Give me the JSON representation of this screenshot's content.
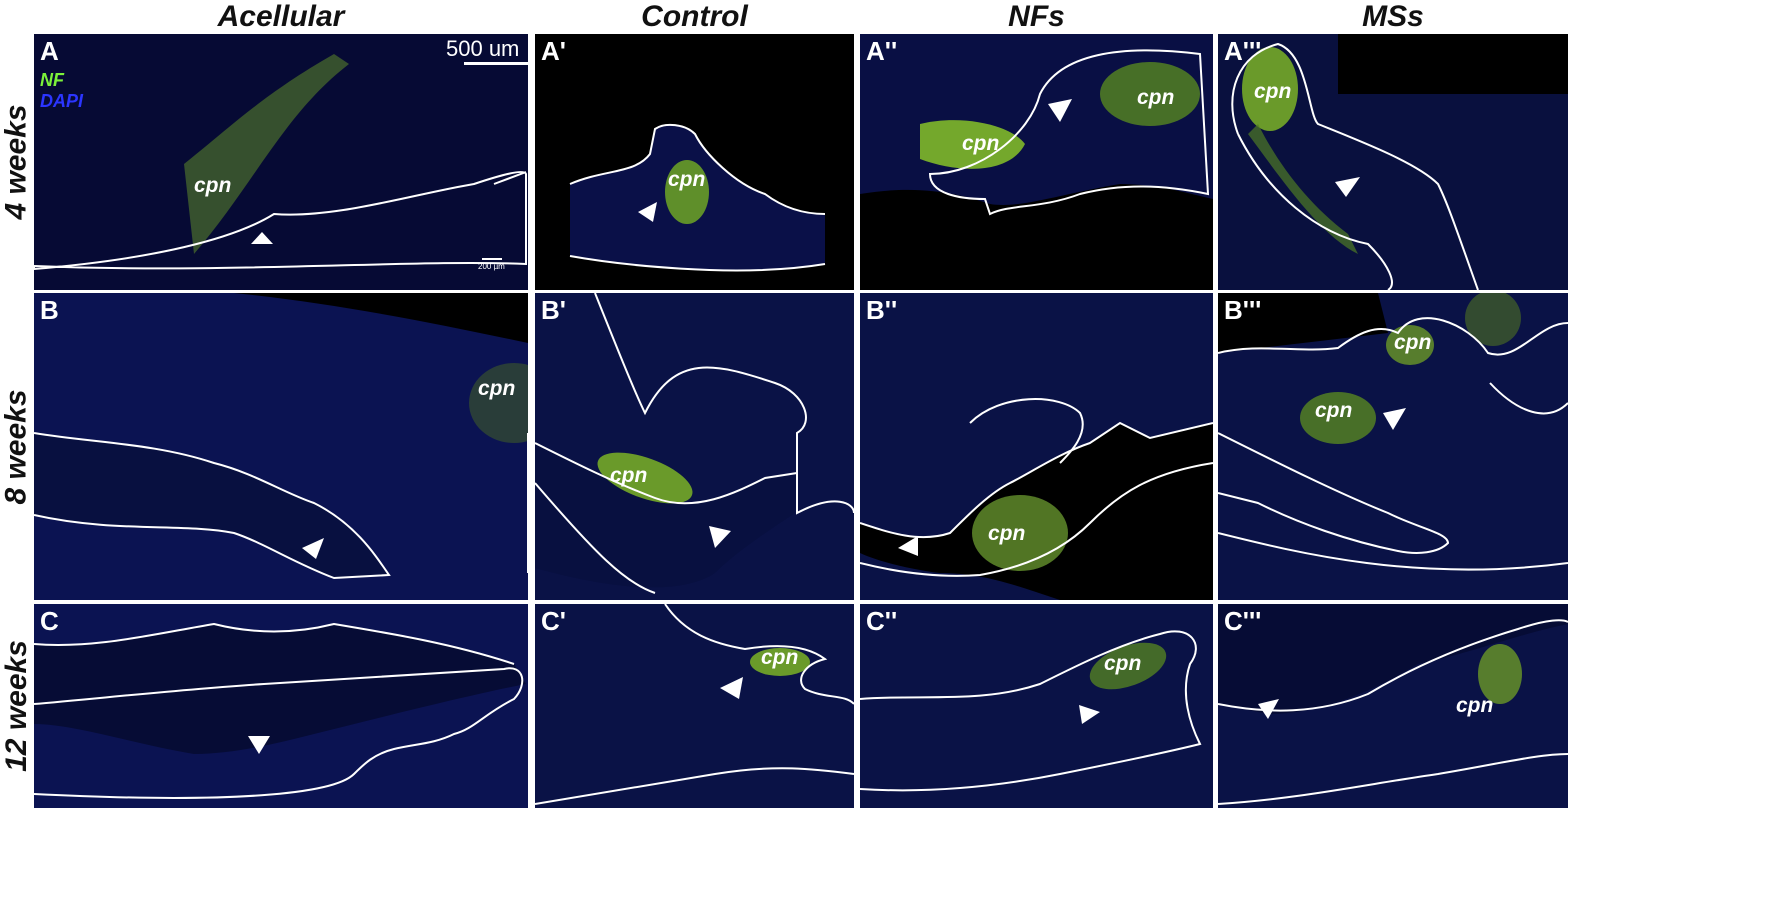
{
  "columns": [
    "Acellular",
    "Control",
    "NFs",
    "MSs"
  ],
  "rows": [
    "4 weeks",
    "8 weeks",
    "12 weeks"
  ],
  "legend": {
    "nf": "NF",
    "dapi": "DAPI",
    "nf_color": "#7cf23a",
    "dapi_color": "#2b35ff"
  },
  "scale": {
    "main": "500 um",
    "inset": "200 µm"
  },
  "nerve_label": "cpn",
  "panels": [
    {
      "label": "A"
    },
    {
      "label": "A'"
    },
    {
      "label": "A''"
    },
    {
      "label": "A'''"
    },
    {
      "label": "B"
    },
    {
      "label": "B'"
    },
    {
      "label": "B''"
    },
    {
      "label": "B'''"
    },
    {
      "label": "C"
    },
    {
      "label": "C'"
    },
    {
      "label": "C''"
    },
    {
      "label": "C'''"
    }
  ]
}
